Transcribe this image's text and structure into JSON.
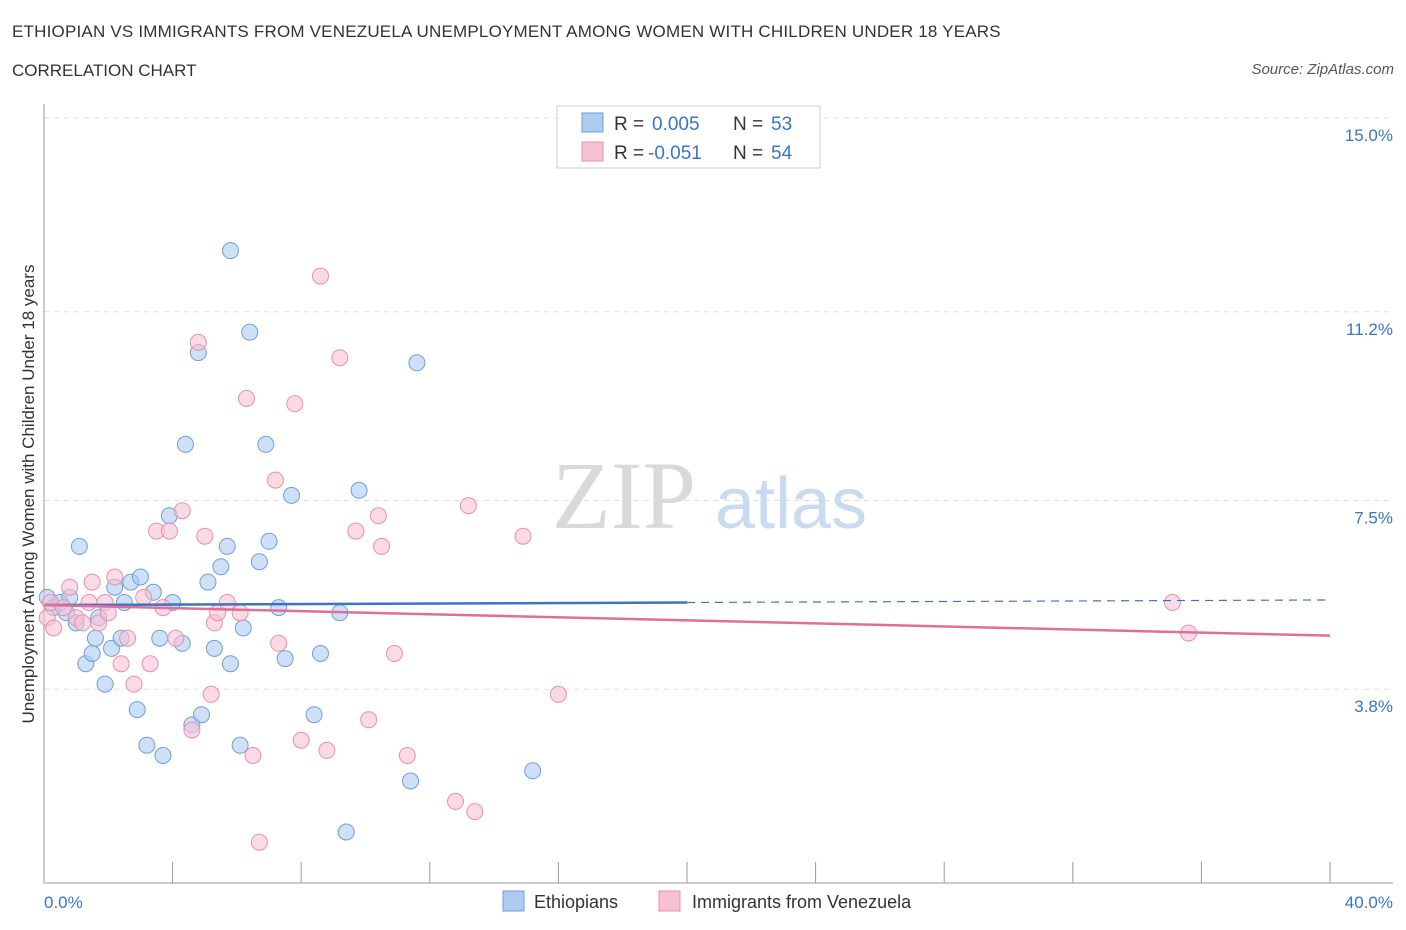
{
  "header": {
    "title": "ETHIOPIAN VS IMMIGRANTS FROM VENEZUELA UNEMPLOYMENT AMONG WOMEN WITH CHILDREN UNDER 18 YEARS",
    "subtitle": "CORRELATION CHART",
    "source": "Source: ZipAtlas.com"
  },
  "watermark": {
    "zip": "ZIP",
    "atlas": "atlas"
  },
  "legend_box": {
    "rows": [
      {
        "r_label": "R =",
        "r_value": "0.005",
        "n_label": "N =",
        "n_value": "53"
      },
      {
        "r_label": "R =",
        "r_value": "-0.051",
        "n_label": "N =",
        "n_value": "54"
      }
    ]
  },
  "colors": {
    "blue_fill": "#aecbf0",
    "blue_stroke": "#6e9fdc",
    "blue_line": "#3a75c4",
    "pink_fill": "#f7c1d3",
    "pink_stroke": "#e88fae",
    "pink_line": "#e06f98",
    "tick_text": "#3a75c4",
    "grid": "#dddddd"
  },
  "chart_data": {
    "type": "scatter",
    "title": "ETHIOPIAN VS IMMIGRANTS FROM VENEZUELA UNEMPLOYMENT AMONG WOMEN WITH CHILDREN UNDER 18 YEARS",
    "subtitle": "CORRELATION CHART",
    "xlabel": "",
    "ylabel": "Unemployment Among Women with Children Under 18 years",
    "xlim": [
      0,
      40
    ],
    "ylim": [
      0,
      15
    ],
    "x_tick_labels": [
      "0.0%",
      "40.0%"
    ],
    "y_ticks": [
      3.8,
      7.5,
      11.2,
      15.0
    ],
    "y_tick_labels": [
      "3.8%",
      "7.5%",
      "11.2%",
      "15.0%"
    ],
    "grid": "horizontal dashed",
    "legend_position": "top-center",
    "series": [
      {
        "name": "Ethiopians",
        "r": 0.005,
        "n": 53,
        "trend": {
          "x_solid_end": 20,
          "x_dash_end": 40,
          "y_start": 5.45,
          "y_end": 5.55
        },
        "points": [
          [
            0.1,
            5.6
          ],
          [
            0.3,
            5.4
          ],
          [
            0.5,
            5.5
          ],
          [
            0.7,
            5.3
          ],
          [
            0.8,
            5.6
          ],
          [
            1.0,
            5.1
          ],
          [
            1.1,
            6.6
          ],
          [
            1.3,
            4.3
          ],
          [
            1.5,
            4.5
          ],
          [
            1.6,
            4.8
          ],
          [
            1.7,
            5.2
          ],
          [
            1.9,
            3.9
          ],
          [
            2.1,
            4.6
          ],
          [
            2.2,
            5.8
          ],
          [
            2.4,
            4.8
          ],
          [
            2.5,
            5.5
          ],
          [
            2.7,
            5.9
          ],
          [
            2.9,
            3.4
          ],
          [
            3.0,
            6.0
          ],
          [
            3.2,
            2.7
          ],
          [
            3.4,
            5.7
          ],
          [
            3.6,
            4.8
          ],
          [
            3.7,
            2.5
          ],
          [
            3.9,
            7.2
          ],
          [
            4.0,
            5.5
          ],
          [
            4.3,
            4.7
          ],
          [
            4.4,
            8.6
          ],
          [
            4.6,
            3.1
          ],
          [
            4.8,
            10.4
          ],
          [
            4.9,
            3.3
          ],
          [
            5.1,
            5.9
          ],
          [
            5.3,
            4.6
          ],
          [
            5.5,
            6.2
          ],
          [
            5.7,
            6.6
          ],
          [
            5.8,
            4.3
          ],
          [
            6.1,
            2.7
          ],
          [
            6.2,
            5.0
          ],
          [
            5.8,
            12.4
          ],
          [
            6.4,
            10.8
          ],
          [
            6.7,
            6.3
          ],
          [
            6.9,
            8.6
          ],
          [
            7.0,
            6.7
          ],
          [
            7.3,
            5.4
          ],
          [
            7.5,
            4.4
          ],
          [
            7.7,
            7.6
          ],
          [
            8.4,
            3.3
          ],
          [
            8.6,
            4.5
          ],
          [
            9.4,
            1.0
          ],
          [
            9.2,
            5.3
          ],
          [
            9.8,
            7.7
          ],
          [
            11.6,
            10.2
          ],
          [
            11.4,
            2.0
          ],
          [
            15.2,
            2.2
          ]
        ]
      },
      {
        "name": "Immigrants from Venezuela",
        "r": -0.051,
        "n": 54,
        "trend": {
          "x_solid_end": 40,
          "y_start": 5.45,
          "y_end": 4.85
        },
        "points": [
          [
            0.1,
            5.2
          ],
          [
            0.2,
            5.5
          ],
          [
            0.3,
            5.0
          ],
          [
            0.6,
            5.4
          ],
          [
            0.8,
            5.8
          ],
          [
            1.0,
            5.2
          ],
          [
            1.2,
            5.1
          ],
          [
            1.4,
            5.5
          ],
          [
            1.5,
            5.9
          ],
          [
            1.7,
            5.1
          ],
          [
            1.9,
            5.5
          ],
          [
            2.0,
            5.3
          ],
          [
            2.2,
            6.0
          ],
          [
            2.4,
            4.3
          ],
          [
            2.6,
            4.8
          ],
          [
            2.8,
            3.9
          ],
          [
            3.1,
            5.6
          ],
          [
            3.3,
            4.3
          ],
          [
            3.5,
            6.9
          ],
          [
            3.7,
            5.4
          ],
          [
            3.9,
            6.9
          ],
          [
            4.1,
            4.8
          ],
          [
            4.3,
            7.3
          ],
          [
            4.6,
            3.0
          ],
          [
            4.8,
            10.6
          ],
          [
            5.0,
            6.8
          ],
          [
            5.2,
            3.7
          ],
          [
            5.3,
            5.1
          ],
          [
            5.4,
            5.3
          ],
          [
            5.7,
            5.5
          ],
          [
            6.1,
            5.3
          ],
          [
            6.3,
            9.5
          ],
          [
            6.5,
            2.5
          ],
          [
            6.7,
            0.8
          ],
          [
            7.2,
            7.9
          ],
          [
            7.3,
            4.7
          ],
          [
            7.8,
            9.4
          ],
          [
            8.0,
            2.8
          ],
          [
            8.6,
            11.9
          ],
          [
            8.8,
            2.6
          ],
          [
            9.2,
            10.3
          ],
          [
            9.7,
            6.9
          ],
          [
            10.1,
            3.2
          ],
          [
            10.4,
            7.2
          ],
          [
            10.5,
            6.6
          ],
          [
            10.9,
            4.5
          ],
          [
            11.3,
            2.5
          ],
          [
            12.8,
            1.6
          ],
          [
            13.2,
            7.4
          ],
          [
            13.4,
            1.4
          ],
          [
            14.9,
            6.8
          ],
          [
            16.0,
            3.7
          ],
          [
            35.1,
            5.5
          ],
          [
            35.6,
            4.9
          ]
        ]
      }
    ]
  },
  "bottom_legend": [
    {
      "label": "Ethiopians"
    },
    {
      "label": "Immigrants from Venezuela"
    }
  ]
}
